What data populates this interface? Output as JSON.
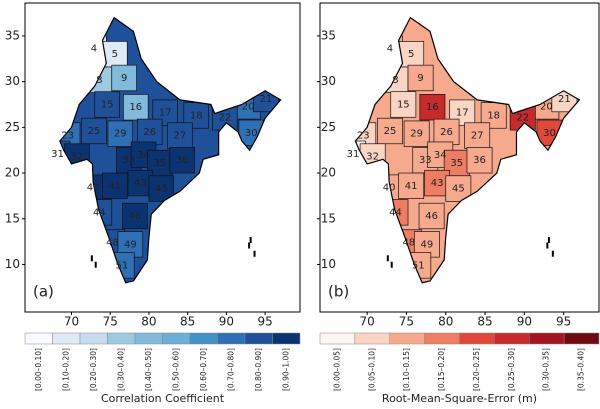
{
  "panels": [
    {
      "panel_label": "(a)",
      "xlim": [
        64,
        99.5
      ],
      "ylim": [
        4.8,
        38.6
      ],
      "xticks": [
        70,
        75,
        80,
        85,
        90,
        95
      ],
      "yticks": [
        10,
        15,
        20,
        25,
        30,
        35
      ],
      "colorbar": {
        "title": "Correlation Coefficient",
        "classes": [
          {
            "label": "[0.00–0.10]",
            "color": "#f7fbff"
          },
          {
            "label": "[0.10–0.20]",
            "color": "#deebf7"
          },
          {
            "label": "[0.20–0.30]",
            "color": "#c6dbef"
          },
          {
            "label": "[0.30–0.40]",
            "color": "#9ecae1"
          },
          {
            "label": "[0.40–0.50]",
            "color": "#82badb"
          },
          {
            "label": "[0.50–0.60]",
            "color": "#6baed6"
          },
          {
            "label": "[0.60–0.70]",
            "color": "#4292c6"
          },
          {
            "label": "[0.70–0.80]",
            "color": "#2f6fb5"
          },
          {
            "label": "[0.80–0.90]",
            "color": "#1f519b"
          },
          {
            "label": "[0.90–1.00]",
            "color": "#0b3372"
          }
        ]
      },
      "base_class": 8,
      "regions": [
        {
          "label": "4",
          "lon": 72.9,
          "lat": 33.6,
          "class": 1
        },
        {
          "label": "5",
          "lon": 75.6,
          "lat": 33.0,
          "class": 1
        },
        {
          "label": "8",
          "lon": 73.6,
          "lat": 30.2,
          "class": 3
        },
        {
          "label": "9",
          "lon": 76.8,
          "lat": 30.4,
          "class": 4
        },
        {
          "label": "15",
          "lon": 74.6,
          "lat": 27.5,
          "class": 8
        },
        {
          "label": "16",
          "lon": 78.3,
          "lat": 27.2,
          "class": 4
        },
        {
          "label": "17",
          "lon": 82.1,
          "lat": 26.6,
          "class": 8
        },
        {
          "label": "18",
          "lon": 86.1,
          "lat": 26.3,
          "class": 8
        },
        {
          "label": "20",
          "lon": 92.8,
          "lat": 27.3,
          "class": 7
        },
        {
          "label": "21",
          "lon": 95.1,
          "lat": 28.1,
          "class": 8
        },
        {
          "label": "22",
          "lon": 89.8,
          "lat": 26.1,
          "class": 8
        },
        {
          "label": "23",
          "lon": 69.5,
          "lat": 24.1,
          "class": 7
        },
        {
          "label": "25",
          "lon": 72.9,
          "lat": 24.6,
          "class": 8
        },
        {
          "label": "29",
          "lon": 76.3,
          "lat": 24.3,
          "class": 7
        },
        {
          "label": "26",
          "lon": 80.1,
          "lat": 24.5,
          "class": 8
        },
        {
          "label": "27",
          "lon": 84.0,
          "lat": 24.1,
          "class": 8
        },
        {
          "label": "30",
          "lon": 93.2,
          "lat": 24.4,
          "class": 7
        },
        {
          "label": "31",
          "lon": 68.2,
          "lat": 22.1,
          "class": 8
        },
        {
          "label": "32",
          "lon": 70.7,
          "lat": 21.8,
          "class": 9
        },
        {
          "label": "33",
          "lon": 77.4,
          "lat": 21.4,
          "class": 9
        },
        {
          "label": "34",
          "lon": 79.3,
          "lat": 22.0,
          "class": 9
        },
        {
          "label": "35",
          "lon": 81.4,
          "lat": 21.1,
          "class": 9
        },
        {
          "label": "36",
          "lon": 84.3,
          "lat": 21.4,
          "class": 9
        },
        {
          "label": "40",
          "lon": 72.8,
          "lat": 18.4,
          "class": 9
        },
        {
          "label": "41",
          "lon": 75.6,
          "lat": 18.6,
          "class": 9
        },
        {
          "label": "43",
          "lon": 78.9,
          "lat": 18.9,
          "class": 9
        },
        {
          "label": "45",
          "lon": 81.6,
          "lat": 18.3,
          "class": 9
        },
        {
          "label": "44",
          "lon": 73.6,
          "lat": 15.7,
          "class": 8
        },
        {
          "label": "46",
          "lon": 78.2,
          "lat": 15.3,
          "class": 9
        },
        {
          "label": "48",
          "lon": 75.3,
          "lat": 12.4,
          "class": 8
        },
        {
          "label": "49",
          "lon": 77.6,
          "lat": 12.2,
          "class": 7
        },
        {
          "label": "51",
          "lon": 76.5,
          "lat": 9.9,
          "class": 7
        }
      ]
    },
    {
      "panel_label": "(b)",
      "xlim": [
        64,
        99.5
      ],
      "ylim": [
        4.8,
        38.6
      ],
      "xticks": [
        70,
        75,
        80,
        85,
        90,
        95
      ],
      "yticks": [
        10,
        15,
        20,
        25,
        30,
        35
      ],
      "colorbar": {
        "title": "Root-Mean-Square-Error (m)",
        "classes": [
          {
            "label": "[0.00–0.05]",
            "color": "#fff5f0"
          },
          {
            "label": "[0.05–0.10]",
            "color": "#fbd5c4"
          },
          {
            "label": "[0.10–0.15]",
            "color": "#f6a98c"
          },
          {
            "label": "[0.15–0.20]",
            "color": "#ef7d64"
          },
          {
            "label": "[0.20–0.25]",
            "color": "#e0483a"
          },
          {
            "label": "[0.25–0.30]",
            "color": "#c62a2a"
          },
          {
            "label": "[0.30–0.35]",
            "color": "#a31522"
          },
          {
            "label": "[0.35–0.40]",
            "color": "#6f0a12"
          }
        ]
      },
      "base_class": 2,
      "regions": [
        {
          "label": "4",
          "lon": 72.9,
          "lat": 33.6,
          "class": 2
        },
        {
          "label": "5",
          "lon": 75.6,
          "lat": 33.0,
          "class": 1
        },
        {
          "label": "8",
          "lon": 73.6,
          "lat": 30.2,
          "class": 1
        },
        {
          "label": "9",
          "lon": 76.8,
          "lat": 30.4,
          "class": 2
        },
        {
          "label": "15",
          "lon": 74.6,
          "lat": 27.5,
          "class": 1
        },
        {
          "label": "16",
          "lon": 78.3,
          "lat": 27.2,
          "class": 5
        },
        {
          "label": "17",
          "lon": 82.1,
          "lat": 26.6,
          "class": 1
        },
        {
          "label": "18",
          "lon": 86.1,
          "lat": 26.3,
          "class": 2
        },
        {
          "label": "20",
          "lon": 92.8,
          "lat": 27.3,
          "class": 2
        },
        {
          "label": "21",
          "lon": 95.1,
          "lat": 28.1,
          "class": 1
        },
        {
          "label": "22",
          "lon": 89.8,
          "lat": 26.1,
          "class": 5
        },
        {
          "label": "23",
          "lon": 69.5,
          "lat": 24.1,
          "class": 1
        },
        {
          "label": "25",
          "lon": 72.9,
          "lat": 24.6,
          "class": 2
        },
        {
          "label": "29",
          "lon": 76.3,
          "lat": 24.3,
          "class": 2
        },
        {
          "label": "26",
          "lon": 80.1,
          "lat": 24.5,
          "class": 2
        },
        {
          "label": "27",
          "lon": 84.0,
          "lat": 24.1,
          "class": 2
        },
        {
          "label": "30",
          "lon": 93.2,
          "lat": 24.4,
          "class": 4
        },
        {
          "label": "31",
          "lon": 68.2,
          "lat": 22.1,
          "class": 0
        },
        {
          "label": "32",
          "lon": 70.7,
          "lat": 21.8,
          "class": 1
        },
        {
          "label": "33",
          "lon": 77.4,
          "lat": 21.4,
          "class": 2
        },
        {
          "label": "34",
          "lon": 79.3,
          "lat": 22.0,
          "class": 2
        },
        {
          "label": "35",
          "lon": 81.4,
          "lat": 21.1,
          "class": 3
        },
        {
          "label": "36",
          "lon": 84.3,
          "lat": 21.4,
          "class": 2
        },
        {
          "label": "40",
          "lon": 72.8,
          "lat": 18.4,
          "class": 2
        },
        {
          "label": "41",
          "lon": 75.6,
          "lat": 18.6,
          "class": 2
        },
        {
          "label": "43",
          "lon": 78.9,
          "lat": 18.9,
          "class": 3
        },
        {
          "label": "45",
          "lon": 81.6,
          "lat": 18.3,
          "class": 2
        },
        {
          "label": "44",
          "lon": 73.6,
          "lat": 15.7,
          "class": 3
        },
        {
          "label": "46",
          "lon": 78.2,
          "lat": 15.3,
          "class": 2
        },
        {
          "label": "48",
          "lon": 75.3,
          "lat": 12.4,
          "class": 3
        },
        {
          "label": "49",
          "lon": 77.6,
          "lat": 12.2,
          "class": 2
        },
        {
          "label": "51",
          "lon": 76.5,
          "lat": 9.9,
          "class": 2
        }
      ]
    }
  ]
}
